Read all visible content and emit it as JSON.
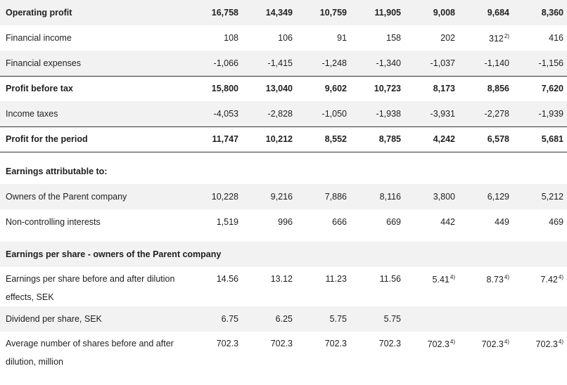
{
  "rows": [
    {
      "label": "Operating profit",
      "style": "shade bold",
      "values": [
        "16,758",
        "14,349",
        "10,759",
        "11,905",
        "9,008",
        "9,684",
        "8,360"
      ]
    },
    {
      "label": "Financial income",
      "style": "",
      "values": [
        "108",
        "106",
        "91",
        "158",
        "202",
        {
          "v": "312",
          "n": "2)"
        },
        "416"
      ]
    },
    {
      "label": "Financial expenses",
      "style": "shade bottom-rule",
      "values": [
        "-1,066",
        "-1,415",
        "-1,248",
        "-1,340",
        "-1,037",
        "-1,140",
        "-1,156"
      ]
    },
    {
      "label": "Profit before tax",
      "style": "bold",
      "values": [
        "15,800",
        "13,040",
        "9,602",
        "10,723",
        "8,173",
        "8,856",
        "7,620"
      ]
    },
    {
      "label": "Income taxes",
      "style": "shade",
      "values": [
        "-4,053",
        "-2,828",
        "-1,050",
        "-1,938",
        "-3,931",
        "-2,278",
        "-1,939"
      ]
    },
    {
      "label": "Profit for the period",
      "style": "bold top-rule bottom-rule",
      "values": [
        "11,747",
        "10,212",
        "8,552",
        "8,785",
        "4,242",
        "6,578",
        "5,681"
      ]
    },
    {
      "label": "Earnings attributable to:",
      "style": "section",
      "values": []
    },
    {
      "label": "Owners of the Parent company",
      "style": "shade",
      "values": [
        "10,228",
        "9,216",
        "7,886",
        "8,116",
        "3,800",
        "6,129",
        "5,212"
      ]
    },
    {
      "label": "Non-controlling interests",
      "style": "",
      "values": [
        "1,519",
        "996",
        "666",
        "669",
        "442",
        "449",
        "469"
      ]
    },
    {
      "label": "Earnings per share - owners of the Parent company",
      "style": "shade section",
      "values": []
    },
    {
      "label": "Earnings per share before and after dilution effects, SEK",
      "style": "tall",
      "values": [
        "14.56",
        "13.12",
        "11.23",
        "11.56",
        {
          "v": "5.41",
          "n": "4)"
        },
        {
          "v": "8.73",
          "n": "4)"
        },
        {
          "v": "7.42",
          "n": "4)"
        }
      ]
    },
    {
      "label": "Dividend per share, SEK",
      "style": "shade",
      "values": [
        "6.75",
        "6.25",
        "5.75",
        "5.75",
        "",
        "",
        ""
      ]
    },
    {
      "label": "Average number of shares before and after dilution, million",
      "style": "tall",
      "values": [
        "702.3",
        "702.3",
        "702.3",
        "702.3",
        {
          "v": "702.3",
          "n": "4)"
        },
        {
          "v": "702.3",
          "n": "4)"
        },
        {
          "v": "702.3",
          "n": "4)"
        }
      ]
    }
  ]
}
